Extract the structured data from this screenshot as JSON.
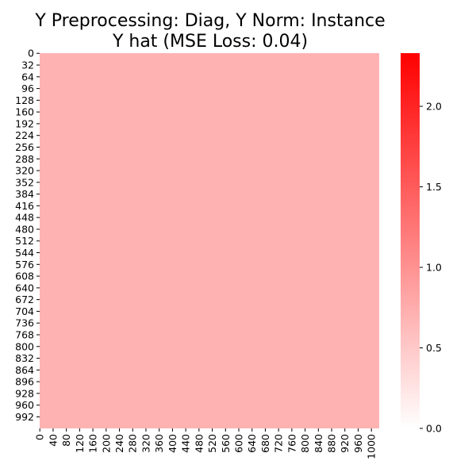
{
  "chart_data": {
    "type": "heatmap",
    "title_lines": [
      "Y Preprocessing: Diag, Y Norm: Instance",
      "Y hat (MSE Loss: 0.04)"
    ],
    "xlabel": "",
    "ylabel": "",
    "rows": 1024,
    "cols": 1024,
    "y_tick_labels": [
      "0",
      "32",
      "64",
      "96",
      "128",
      "160",
      "192",
      "224",
      "256",
      "288",
      "320",
      "352",
      "384",
      "416",
      "448",
      "480",
      "512",
      "544",
      "576",
      "608",
      "640",
      "672",
      "704",
      "736",
      "768",
      "800",
      "832",
      "864",
      "896",
      "928",
      "960",
      "992"
    ],
    "x_tick_labels": [
      "0",
      "40",
      "80",
      "120",
      "160",
      "200",
      "240",
      "280",
      "320",
      "360",
      "400",
      "440",
      "480",
      "520",
      "560",
      "600",
      "640",
      "680",
      "720",
      "760",
      "800",
      "840",
      "880",
      "920",
      "960",
      "1000"
    ],
    "uniform_cell_value": 0.7,
    "colorbar": {
      "vmin": 0.0,
      "vmax": 2.33,
      "ticks": [
        0.0,
        0.5,
        1.0,
        1.5,
        2.0
      ],
      "tick_labels": [
        "0.0",
        "0.5",
        "1.0",
        "1.5",
        "2.0"
      ],
      "color_low": "#ffffff",
      "color_high": "#ff0000"
    },
    "grid": false,
    "legend": "colorbar-right"
  }
}
